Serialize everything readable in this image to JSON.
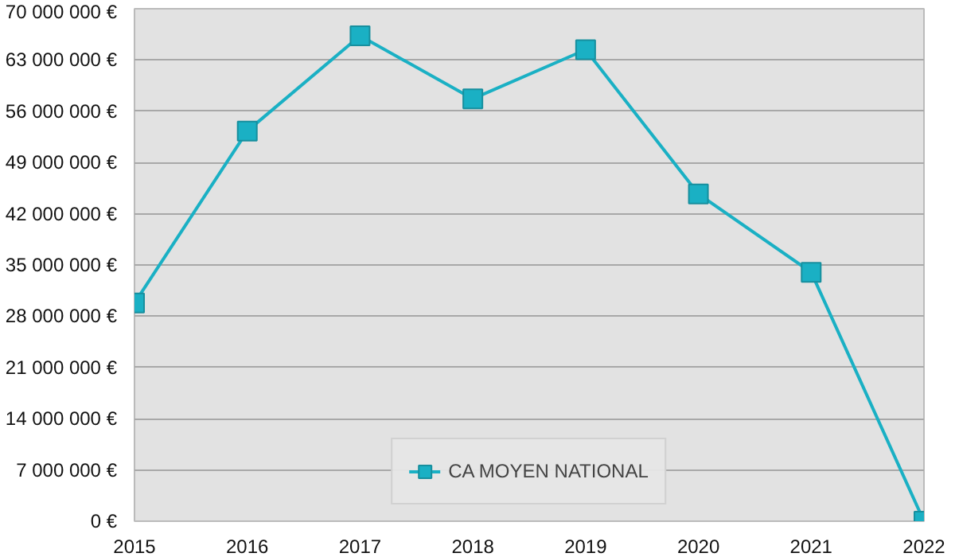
{
  "chart_data": {
    "type": "line",
    "x": [
      2015,
      2016,
      2017,
      2018,
      2019,
      2020,
      2021,
      2022
    ],
    "series": [
      {
        "name": "CA MOYEN NATIONAL",
        "color": "#1ab0c4",
        "values": [
          29800000,
          53300000,
          66300000,
          57700000,
          64400000,
          44700000,
          34000000,
          0
        ]
      }
    ],
    "xlim": [
      2015,
      2022
    ],
    "xticks": [
      2015,
      2016,
      2017,
      2018,
      2019,
      2020,
      2021,
      2022
    ],
    "ylim": [
      0,
      70000000
    ],
    "yticks": [
      {
        "value": 0,
        "label": "0 €"
      },
      {
        "value": 7000000,
        "label": "7 000 000 €"
      },
      {
        "value": 14000000,
        "label": "14 000 000 €"
      },
      {
        "value": 21000000,
        "label": "21 000 000 €"
      },
      {
        "value": 28000000,
        "label": "28 000 000 €"
      },
      {
        "value": 35000000,
        "label": "35 000 000 €"
      },
      {
        "value": 42000000,
        "label": "42 000 000 €"
      },
      {
        "value": 49000000,
        "label": "49 000 000 €"
      },
      {
        "value": 56000000,
        "label": "56 000 000 €"
      },
      {
        "value": 63000000,
        "label": "63 000 000 €"
      },
      {
        "value": 70000000,
        "label": "70 000 000 €"
      }
    ],
    "grid": "y",
    "legend": "bottom",
    "marker": "square",
    "line_style": "solid"
  }
}
